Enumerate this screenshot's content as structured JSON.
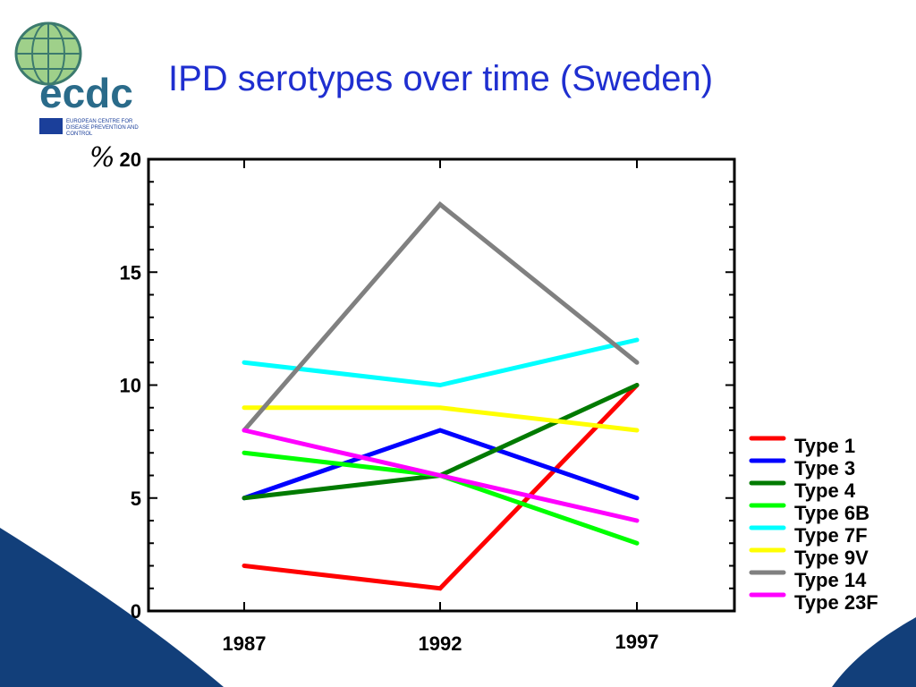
{
  "slide": {
    "title": "IPD serotypes over time (Sweden)"
  },
  "logo": {
    "wordmark": "ecdc",
    "org_name_line1": "EUROPEAN CENTRE FOR",
    "org_name_line2": "DISEASE PREVENTION AND",
    "org_name_line3": "CONTROL"
  },
  "colors": {
    "title": "#1f2fd0",
    "background_swoosh": "#123f7a"
  },
  "chart_data": {
    "type": "line",
    "title": "",
    "xlabel": "",
    "ylabel": "%",
    "x": [
      "1987",
      "1992",
      "1997"
    ],
    "ylim": [
      0,
      20
    ],
    "yticks": [
      "0",
      "5",
      "10",
      "15",
      "20"
    ],
    "grid": false,
    "legend_position": "right",
    "series": [
      {
        "name": "Type 1",
        "color": "#ff0000",
        "values": [
          2,
          1,
          10
        ]
      },
      {
        "name": "Type 3",
        "color": "#0000ff",
        "values": [
          5,
          8,
          5
        ]
      },
      {
        "name": "Type 4",
        "color": "#007a00",
        "values": [
          5,
          6,
          10
        ]
      },
      {
        "name": "Type 6B",
        "color": "#00ff00",
        "values": [
          7,
          6,
          3
        ]
      },
      {
        "name": "Type 7F",
        "color": "#00ffff",
        "values": [
          11,
          10,
          12
        ]
      },
      {
        "name": "Type 9V",
        "color": "#ffff00",
        "values": [
          9,
          9,
          8
        ]
      },
      {
        "name": "Type 14",
        "color": "#808080",
        "values": [
          8,
          18,
          11
        ]
      },
      {
        "name": "Type 23F",
        "color": "#ff00ff",
        "values": [
          8,
          6,
          4
        ]
      }
    ]
  }
}
